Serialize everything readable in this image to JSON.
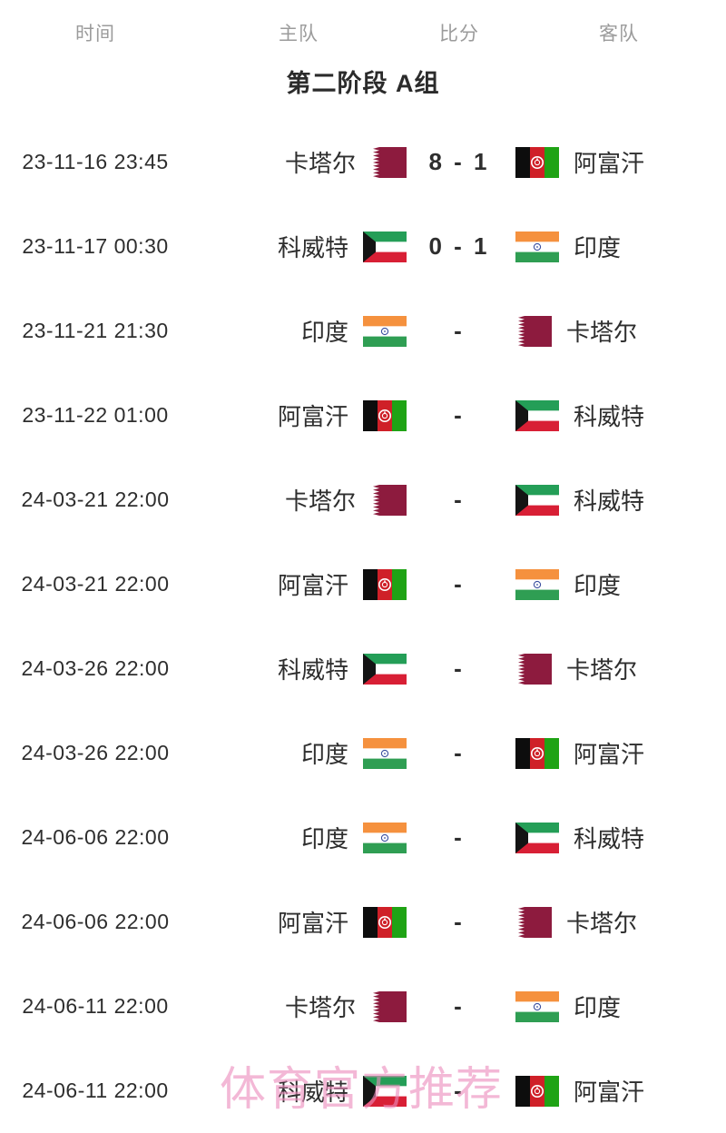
{
  "header": {
    "columns": [
      {
        "id": "time",
        "label": "时间"
      },
      {
        "id": "home",
        "label": "主队"
      },
      {
        "id": "score",
        "label": "比分"
      },
      {
        "id": "away",
        "label": "客队"
      }
    ]
  },
  "section": {
    "title": "第二阶段 A组"
  },
  "watermark": {
    "text": "体育官方推荐",
    "color": "#ec8dbd"
  },
  "flags": {
    "qa": {
      "country": "qatar",
      "maroon": "#8d1b3e",
      "white": "#ffffff"
    },
    "kw": {
      "country": "kuwait",
      "green": "#249e57",
      "white": "#ffffff",
      "red": "#d81f35",
      "black": "#141414"
    },
    "in": {
      "country": "india",
      "saffron": "#f5913e",
      "white": "#ffffff",
      "green": "#2f9e53",
      "navy": "#3c50a0"
    },
    "af": {
      "country": "afghanistan",
      "black": "#0d0d0d",
      "red": "#cf2028",
      "green": "#1fa315",
      "white": "#ffffff"
    }
  },
  "matches": [
    {
      "time": "23-11-16 23:45",
      "home": "卡塔尔",
      "home_flag": "qa",
      "score": "8 - 1",
      "away": "阿富汗",
      "away_flag": "af"
    },
    {
      "time": "23-11-17 00:30",
      "home": "科威特",
      "home_flag": "kw",
      "score": "0 - 1",
      "away": "印度",
      "away_flag": "in"
    },
    {
      "time": "23-11-21 21:30",
      "home": "印度",
      "home_flag": "in",
      "score": "-",
      "away": "卡塔尔",
      "away_flag": "qa"
    },
    {
      "time": "23-11-22 01:00",
      "home": "阿富汗",
      "home_flag": "af",
      "score": "-",
      "away": "科威特",
      "away_flag": "kw"
    },
    {
      "time": "24-03-21 22:00",
      "home": "卡塔尔",
      "home_flag": "qa",
      "score": "-",
      "away": "科威特",
      "away_flag": "kw"
    },
    {
      "time": "24-03-21 22:00",
      "home": "阿富汗",
      "home_flag": "af",
      "score": "-",
      "away": "印度",
      "away_flag": "in"
    },
    {
      "time": "24-03-26 22:00",
      "home": "科威特",
      "home_flag": "kw",
      "score": "-",
      "away": "卡塔尔",
      "away_flag": "qa"
    },
    {
      "time": "24-03-26 22:00",
      "home": "印度",
      "home_flag": "in",
      "score": "-",
      "away": "阿富汗",
      "away_flag": "af"
    },
    {
      "time": "24-06-06 22:00",
      "home": "印度",
      "home_flag": "in",
      "score": "-",
      "away": "科威特",
      "away_flag": "kw"
    },
    {
      "time": "24-06-06 22:00",
      "home": "阿富汗",
      "home_flag": "af",
      "score": "-",
      "away": "卡塔尔",
      "away_flag": "qa"
    },
    {
      "time": "24-06-11 22:00",
      "home": "卡塔尔",
      "home_flag": "qa",
      "score": "-",
      "away": "印度",
      "away_flag": "in"
    },
    {
      "time": "24-06-11 22:00",
      "home": "科威特",
      "home_flag": "kw",
      "score": "-",
      "away": "阿富汗",
      "away_flag": "af"
    }
  ]
}
